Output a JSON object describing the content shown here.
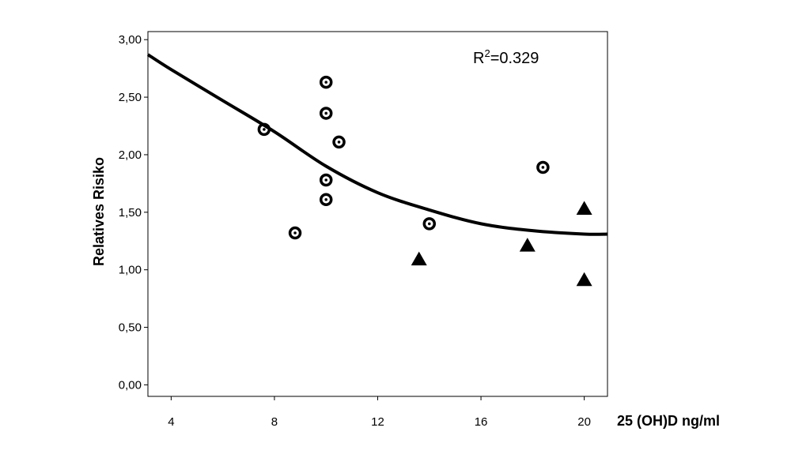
{
  "chart_data": {
    "type": "scatter",
    "title": "",
    "xlabel": "25 (OH)D ng/ml",
    "ylabel": "Relatives Risiko",
    "xlim": [
      3.1,
      20.9
    ],
    "ylim": [
      -0.1,
      3.07
    ],
    "x_ticks": [
      4,
      8,
      12,
      16,
      20
    ],
    "x_tick_labels": [
      "4",
      "8",
      "12",
      "16",
      "20"
    ],
    "y_ticks": [
      0,
      0.5,
      1.0,
      1.5,
      2.0,
      2.5,
      3.0
    ],
    "y_tick_labels": [
      "0,00",
      "0,50",
      "1,00",
      "1,50",
      "2,00",
      "2,50",
      "3,00"
    ],
    "grid": false,
    "annotation": {
      "base": "R",
      "sup": "2",
      "rest": "=0.329"
    },
    "series": [
      {
        "marker": "circle",
        "points": [
          {
            "x": 7.6,
            "y": 2.22
          },
          {
            "x": 8.8,
            "y": 1.32
          },
          {
            "x": 10.0,
            "y": 2.63
          },
          {
            "x": 10.0,
            "y": 2.36
          },
          {
            "x": 10.5,
            "y": 2.11
          },
          {
            "x": 10.0,
            "y": 1.78
          },
          {
            "x": 10.0,
            "y": 1.61
          },
          {
            "x": 14.0,
            "y": 1.4
          },
          {
            "x": 18.4,
            "y": 1.89
          }
        ]
      },
      {
        "marker": "triangle",
        "points": [
          {
            "x": 13.6,
            "y": 1.09
          },
          {
            "x": 17.8,
            "y": 1.21
          },
          {
            "x": 20.0,
            "y": 1.53
          },
          {
            "x": 20.0,
            "y": 0.91
          }
        ]
      }
    ],
    "fit_curve": {
      "type": "quadratic",
      "points": [
        {
          "x": 3.1,
          "y": 2.87
        },
        {
          "x": 4.0,
          "y": 2.74
        },
        {
          "x": 6.0,
          "y": 2.47
        },
        {
          "x": 8.0,
          "y": 2.2
        },
        {
          "x": 10.0,
          "y": 1.9
        },
        {
          "x": 12.0,
          "y": 1.67
        },
        {
          "x": 14.0,
          "y": 1.52
        },
        {
          "x": 16.0,
          "y": 1.4
        },
        {
          "x": 18.0,
          "y": 1.34
        },
        {
          "x": 20.0,
          "y": 1.31
        },
        {
          "x": 20.9,
          "y": 1.31
        }
      ]
    }
  }
}
